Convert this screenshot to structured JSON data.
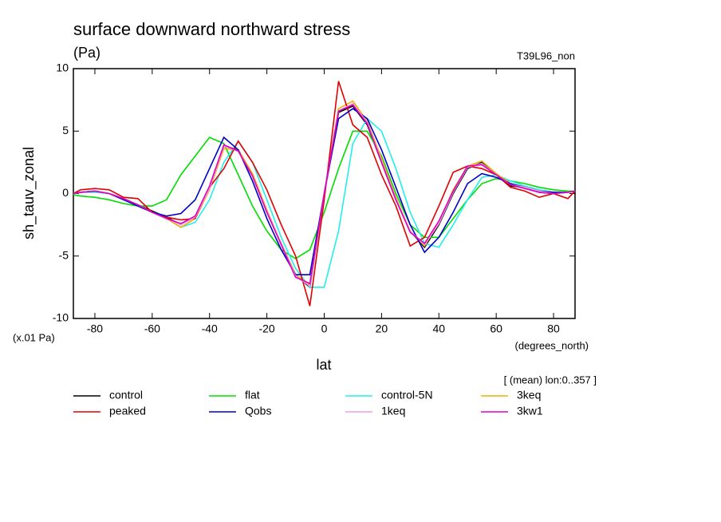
{
  "chart_data": {
    "type": "line",
    "title": "surface downward northward stress",
    "units": "(Pa)",
    "run_label": "T39L96_non",
    "y_label": "sh_tauv_zonal",
    "y_scale_note": "(x.01 Pa)",
    "x_units": "(degrees_north)",
    "x_label": "lat",
    "note": "[ (mean) lon:0..357 ]",
    "xlim": [
      -87.5,
      87.5
    ],
    "xticks": [
      -80,
      -60,
      -40,
      -20,
      0,
      20,
      40,
      60,
      80
    ],
    "ylim": [
      -10,
      10
    ],
    "yticks": [
      -10,
      -5,
      0,
      5,
      10
    ],
    "x": [
      -87.5,
      -85,
      -80,
      -75,
      -70,
      -65,
      -60,
      -55,
      -50,
      -45,
      -40,
      -35,
      -30,
      -25,
      -20,
      -15,
      -10,
      -5,
      0,
      5,
      10,
      15,
      20,
      25,
      30,
      35,
      40,
      45,
      50,
      55,
      60,
      65,
      70,
      75,
      80,
      85,
      87.5
    ],
    "series": [
      {
        "name": "control",
        "color": "#000000",
        "values": [
          0,
          0.1,
          0.2,
          0,
          -0.4,
          -0.9,
          -1.4,
          -1.9,
          -2.5,
          -1.8,
          0.5,
          3.8,
          3.5,
          1.5,
          -1.5,
          -4.0,
          -6.5,
          -7.5,
          0,
          6.5,
          7.0,
          5.5,
          2.5,
          -0.5,
          -3.0,
          -4.3,
          -2.5,
          0,
          2.0,
          2.5,
          1.5,
          0.6,
          0.5,
          0.1,
          0,
          0.1,
          0.2
        ]
      },
      {
        "name": "flat",
        "color": "#00dd00",
        "values": [
          -0.1,
          -0.2,
          -0.3,
          -0.5,
          -0.8,
          -1.0,
          -1.0,
          -0.5,
          1.5,
          3.0,
          4.5,
          4.0,
          1.5,
          -1.0,
          -3.0,
          -4.5,
          -5.2,
          -4.5,
          -1.5,
          2.0,
          5.0,
          5.0,
          3.0,
          0,
          -2.5,
          -3.5,
          -3.5,
          -2.0,
          -0.5,
          0.8,
          1.2,
          1.0,
          0.8,
          0.5,
          0.3,
          0.2,
          0.2
        ]
      },
      {
        "name": "control-5N",
        "color": "#22eeee",
        "values": [
          0,
          0.1,
          0.1,
          0,
          -0.4,
          -0.9,
          -1.5,
          -2.0,
          -2.7,
          -2.3,
          -0.5,
          2.5,
          4.2,
          2.5,
          -0.5,
          -3.5,
          -6.0,
          -7.5,
          -7.5,
          -3.0,
          4.0,
          6.0,
          5.0,
          2.0,
          -1.5,
          -4.0,
          -4.3,
          -2.5,
          -0.5,
          1.3,
          1.5,
          1.0,
          0.6,
          0.3,
          0.1,
          0.1,
          0.2
        ]
      },
      {
        "name": "3keq",
        "color": "#f0b000",
        "values": [
          0,
          0.1,
          0.2,
          0,
          -0.4,
          -0.9,
          -1.5,
          -2.0,
          -2.7,
          -2.0,
          0.3,
          3.6,
          3.5,
          1.6,
          -1.3,
          -4.0,
          -6.5,
          -7.3,
          0,
          6.8,
          7.4,
          5.8,
          2.8,
          -0.3,
          -3.0,
          -4.2,
          -2.3,
          0.3,
          2.2,
          2.6,
          1.6,
          0.8,
          0.5,
          0.2,
          0,
          0.1,
          0.2
        ]
      },
      {
        "name": "peaked",
        "color": "#e00000",
        "values": [
          0,
          0.3,
          0.4,
          0.3,
          -0.3,
          -0.4,
          -1.5,
          -1.9,
          -2.1,
          -2.0,
          0.5,
          2.0,
          4.2,
          2.5,
          0.3,
          -2.5,
          -5.0,
          -9.0,
          -0.5,
          9.0,
          5.5,
          4.5,
          1.5,
          -1.0,
          -4.2,
          -3.5,
          -1.0,
          1.7,
          2.2,
          2.0,
          1.5,
          0.5,
          0.2,
          -0.3,
          0,
          -0.4,
          0.2
        ]
      },
      {
        "name": "Qobs",
        "color": "#0000c8",
        "values": [
          0,
          0.1,
          0.2,
          0,
          -0.5,
          -1.0,
          -1.5,
          -1.8,
          -1.6,
          -0.5,
          2.0,
          4.5,
          3.5,
          1.0,
          -2.0,
          -4.5,
          -6.5,
          -6.5,
          0,
          6.0,
          6.8,
          6.0,
          3.5,
          0.5,
          -2.5,
          -4.7,
          -3.5,
          -1.5,
          0.8,
          1.6,
          1.3,
          0.8,
          0.5,
          0.2,
          0.1,
          0.1,
          0.2
        ]
      },
      {
        "name": "1keq",
        "color": "#f0a0e0",
        "values": [
          0,
          0.1,
          0.2,
          0,
          -0.4,
          -0.9,
          -1.5,
          -2.0,
          -2.5,
          -1.9,
          0.4,
          3.8,
          3.4,
          1.4,
          -1.4,
          -4.0,
          -6.6,
          -7.4,
          0,
          6.6,
          7.2,
          5.7,
          2.6,
          -0.4,
          -3.0,
          -4.1,
          -2.4,
          0.1,
          2.1,
          2.4,
          1.5,
          0.7,
          0.5,
          0.2,
          0,
          0.1,
          0.2
        ]
      },
      {
        "name": "3kw1",
        "color": "#e000c0",
        "values": [
          0,
          0.1,
          0.2,
          0,
          -0.4,
          -0.9,
          -1.5,
          -2.0,
          -2.4,
          -1.8,
          0.6,
          3.9,
          3.4,
          1.4,
          -1.5,
          -4.1,
          -6.7,
          -7.2,
          0,
          6.6,
          7.1,
          5.6,
          2.5,
          -0.5,
          -3.1,
          -4.0,
          -2.2,
          0.2,
          2.2,
          2.3,
          1.5,
          0.7,
          0.4,
          0.1,
          0,
          0.1,
          0.2
        ]
      }
    ]
  }
}
